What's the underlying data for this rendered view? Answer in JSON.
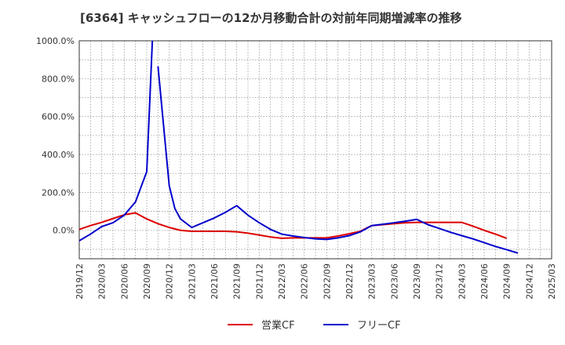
{
  "chart_data": {
    "type": "line",
    "title": "[6364]  キャッシュフローの12か月移動合計の対前年同期増減率の推移",
    "xlabel": "",
    "ylabel": "",
    "ylim": [
      -150,
      1000
    ],
    "grid": true,
    "legend_position": "bottom",
    "yticks": [
      {
        "value": 1000,
        "label": "1000.0%"
      },
      {
        "value": 800,
        "label": "800.0%"
      },
      {
        "value": 600,
        "label": "600.0%"
      },
      {
        "value": 400,
        "label": "400.0%"
      },
      {
        "value": 200,
        "label": "200.0%"
      },
      {
        "value": 0,
        "label": "0.0%"
      }
    ],
    "xticks": [
      "2019/12",
      "2020/03",
      "2020/06",
      "2020/09",
      "2020/12",
      "2021/03",
      "2021/06",
      "2021/09",
      "2021/12",
      "2022/03",
      "2022/06",
      "2022/09",
      "2022/12",
      "2023/03",
      "2023/06",
      "2023/09",
      "2023/12",
      "2024/03",
      "2024/06",
      "2024/09",
      "2024/12",
      "2025/03"
    ],
    "series": [
      {
        "name": "営業CF",
        "color": "#dd0000",
        "points": [
          [
            0,
            5
          ],
          [
            3,
            25
          ],
          [
            6,
            42
          ],
          [
            9,
            62
          ],
          [
            12,
            82
          ],
          [
            15,
            92
          ],
          [
            18,
            60
          ],
          [
            21,
            35
          ],
          [
            24,
            15
          ],
          [
            27,
            0
          ],
          [
            30,
            -5
          ],
          [
            33,
            -5
          ],
          [
            36,
            -5
          ],
          [
            39,
            -5
          ],
          [
            42,
            -8
          ],
          [
            45,
            -15
          ],
          [
            48,
            -25
          ],
          [
            51,
            -35
          ],
          [
            54,
            -42
          ],
          [
            57,
            -40
          ],
          [
            60,
            -40
          ],
          [
            63,
            -40
          ],
          [
            66,
            -40
          ],
          [
            69,
            -30
          ],
          [
            72,
            -18
          ],
          [
            75,
            -5
          ],
          [
            78,
            25
          ],
          [
            81,
            30
          ],
          [
            84,
            35
          ],
          [
            87,
            40
          ],
          [
            90,
            42
          ],
          [
            93,
            42
          ],
          [
            96,
            42
          ],
          [
            99,
            42
          ],
          [
            102,
            42
          ],
          [
            105,
            22
          ],
          [
            108,
            0
          ],
          [
            111,
            -20
          ],
          [
            114,
            -42
          ]
        ]
      },
      {
        "name": "フリーCF",
        "color": "#0000cc",
        "segments": [
          [
            [
              0,
              -55
            ],
            [
              3,
              -20
            ],
            [
              6,
              20
            ],
            [
              9,
              40
            ],
            [
              12,
              80
            ],
            [
              15,
              150
            ],
            [
              18,
              310
            ],
            [
              19.5,
              1000
            ]
          ],
          [
            [
              21,
              865
            ],
            [
              24,
              235
            ],
            [
              25.5,
              115
            ],
            [
              27,
              60
            ],
            [
              30,
              15
            ],
            [
              33,
              40
            ],
            [
              36,
              65
            ],
            [
              39,
              95
            ],
            [
              42,
              130
            ],
            [
              45,
              80
            ],
            [
              48,
              40
            ],
            [
              51,
              5
            ],
            [
              54,
              -20
            ],
            [
              57,
              -30
            ],
            [
              60,
              -38
            ],
            [
              63,
              -45
            ],
            [
              66,
              -48
            ],
            [
              69,
              -40
            ],
            [
              72,
              -28
            ],
            [
              75,
              -8
            ],
            [
              78,
              25
            ],
            [
              81,
              32
            ],
            [
              84,
              40
            ],
            [
              87,
              48
            ],
            [
              90,
              58
            ],
            [
              93,
              30
            ],
            [
              96,
              10
            ],
            [
              99,
              -10
            ],
            [
              102,
              -28
            ],
            [
              105,
              -45
            ],
            [
              108,
              -65
            ],
            [
              111,
              -85
            ],
            [
              114,
              -102
            ],
            [
              117,
              -120
            ]
          ]
        ]
      }
    ]
  }
}
